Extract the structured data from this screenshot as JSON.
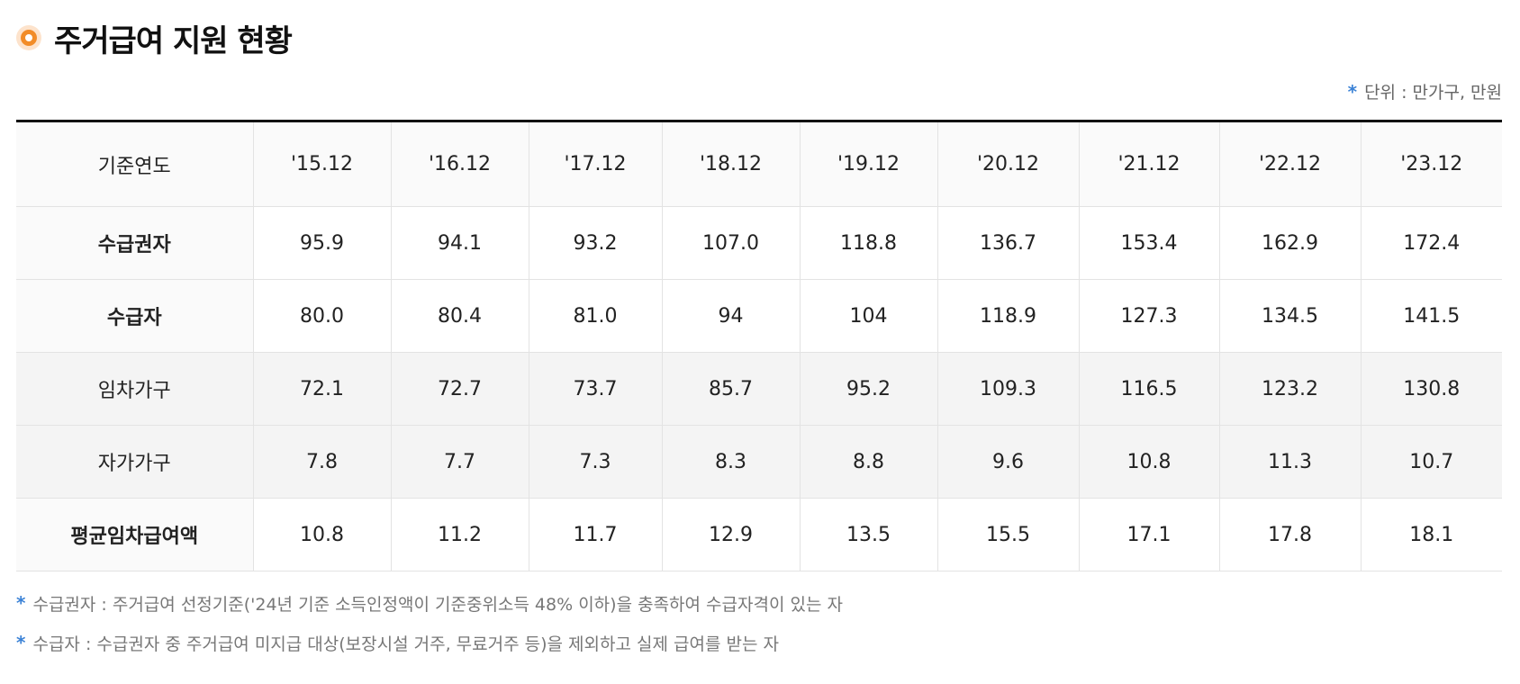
{
  "title": "주거급여 지원 현황",
  "unit_note": "단위 : 만가구, 만원",
  "table": {
    "header": [
      "기준연도",
      "'15.12",
      "'16.12",
      "'17.12",
      "'18.12",
      "'19.12",
      "'20.12",
      "'21.12",
      "'22.12",
      "'23.12"
    ],
    "rows": [
      {
        "label": "수급권자",
        "values": [
          "95.9",
          "94.1",
          "93.2",
          "107.0",
          "118.8",
          "136.7",
          "153.4",
          "162.9",
          "172.4"
        ]
      },
      {
        "label": "수급자",
        "values": [
          "80.0",
          "80.4",
          "81.0",
          "94",
          "104",
          "118.9",
          "127.3",
          "134.5",
          "141.5"
        ]
      },
      {
        "label": "임차가구",
        "values": [
          "72.1",
          "72.7",
          "73.7",
          "85.7",
          "95.2",
          "109.3",
          "116.5",
          "123.2",
          "130.8"
        ]
      },
      {
        "label": "자가가구",
        "values": [
          "7.8",
          "7.7",
          "7.3",
          "8.3",
          "8.8",
          "9.6",
          "10.8",
          "11.3",
          "10.7"
        ]
      },
      {
        "label": "평균임차급여액",
        "values": [
          "10.8",
          "11.2",
          "11.7",
          "12.9",
          "13.5",
          "15.5",
          "17.1",
          "17.8",
          "18.1"
        ]
      }
    ]
  },
  "notes": [
    "수급권자 : 주거급여 선정기준('24년 기준 소득인정액이 기준중위소득 48% 이하)을 충족하여 수급자격이 있는 자",
    "수급자 : 수급권자 중 주거급여 미지급 대상(보장시설 거주, 무료거주 등)을 제외하고 실제 급여를 받는 자"
  ],
  "colors": {
    "accent_orange": "#f28c28",
    "note_star_blue": "#3b82d6"
  }
}
